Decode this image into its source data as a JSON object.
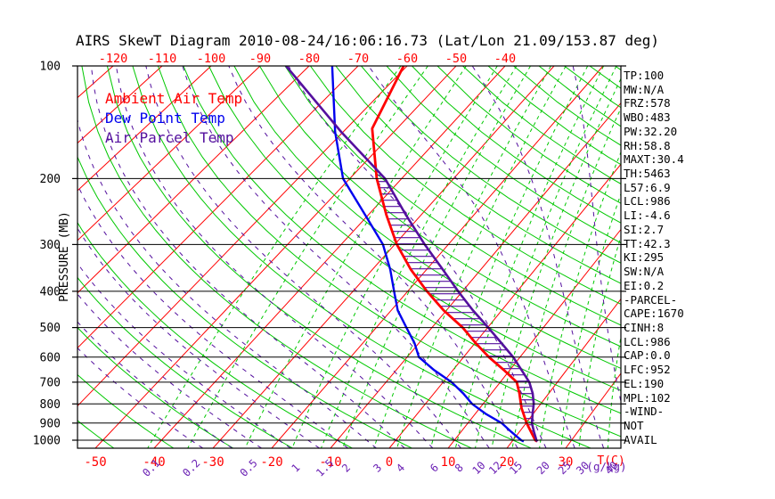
{
  "title": "AIRS SkewT Diagram 2010-08-24/16:06:16.73 (Lat/Lon 21.09/153.87 deg)",
  "legend": {
    "ambient": "Ambient Air Temp",
    "dew": "Dew Point Temp",
    "parcel": "Air Parcel Temp"
  },
  "colors": {
    "ambient": "#ff0000",
    "dew": "#0000ee",
    "parcel": "#54109e",
    "isotherm": "#ff0000",
    "dry_adiabat": "#00c800",
    "mixing_ratio": "#00c800",
    "moist_adiabat": "#54109e",
    "mixing_label": "#6b21b4",
    "axis": "#000000",
    "temp_tick_label": "#ff0000"
  },
  "axes": {
    "pressure_axis_label": "PRESSURE (MB)",
    "pressure_ticks": [
      100,
      200,
      300,
      400,
      500,
      600,
      700,
      800,
      900,
      1000
    ],
    "top_temp_ticks": [
      -120,
      -110,
      -100,
      -90,
      -80,
      -70,
      -60,
      -50,
      -40
    ],
    "bottom_temp_ticks": [
      -50,
      -40,
      -30,
      -20,
      -10,
      0,
      10,
      20,
      30
    ],
    "temp_unit_label": "T(C)",
    "mixing_unit_label": "(g/kg)"
  },
  "stats": [
    "TP:100",
    "MW:N/A",
    "FRZ:578",
    "WBO:483",
    "PW:32.20",
    "RH:58.8",
    "MAXT:30.4",
    "TH:5463",
    "L57:6.9",
    "LCL:986",
    "LI:-4.6",
    "SI:2.7",
    "TT:42.3",
    "KI:295",
    "SW:N/A",
    "EI:0.2",
    "-PARCEL-",
    "CAPE:1670",
    "CINH:8",
    "LCL:986",
    "CAP:0.0",
    "LFC:952",
    "EL:190",
    "MPL:102",
    "-WIND-",
    "NOT",
    "AVAIL"
  ],
  "chart_data": {
    "type": "skewt_log_p",
    "pressure_range_mb": [
      100,
      1050
    ],
    "isotherms_c": {
      "min": -120,
      "max": 40,
      "step": 10
    },
    "dry_adiabats_theta_c": {
      "min": -60,
      "max": 230,
      "step": 10
    },
    "moist_adiabats_thetaw_c": {
      "min": -35,
      "max": 40,
      "step": 5
    },
    "mixing_ratio_lines_gkg": [
      0.1,
      0.2,
      0.5,
      1,
      1.5,
      2,
      3,
      4,
      6,
      8,
      10,
      12,
      15,
      20,
      25,
      30,
      40
    ],
    "series": [
      {
        "name": "Ambient Air Temp",
        "color_key": "ambient",
        "points_p_t": [
          [
            100,
            -60.7
          ],
          [
            147,
            -54.9
          ],
          [
            200,
            -44.8
          ],
          [
            250,
            -36.6
          ],
          [
            300,
            -29.6
          ],
          [
            350,
            -22.9
          ],
          [
            400,
            -16.5
          ],
          [
            450,
            -10.5
          ],
          [
            500,
            -4.5
          ],
          [
            550,
            0.1
          ],
          [
            600,
            4.5
          ],
          [
            650,
            9.0
          ],
          [
            700,
            12.9
          ],
          [
            750,
            14.9
          ],
          [
            820,
            17.2
          ],
          [
            900,
            20.1
          ],
          [
            950,
            22.0
          ],
          [
            1000,
            23.8
          ],
          [
            1008,
            24.3
          ]
        ]
      },
      {
        "name": "Dew Point Temp",
        "color_key": "dew",
        "points_p_t": [
          [
            100,
            -75.3
          ],
          [
            150,
            -61.6
          ],
          [
            200,
            -51.3
          ],
          [
            250,
            -40.6
          ],
          [
            300,
            -32.2
          ],
          [
            350,
            -26.7
          ],
          [
            400,
            -22.5
          ],
          [
            450,
            -18.8
          ],
          [
            500,
            -14.6
          ],
          [
            550,
            -10.8
          ],
          [
            600,
            -7.9
          ],
          [
            650,
            -3.3
          ],
          [
            700,
            1.5
          ],
          [
            750,
            5.1
          ],
          [
            800,
            8.1
          ],
          [
            850,
            11.8
          ],
          [
            900,
            15.8
          ],
          [
            950,
            18.6
          ],
          [
            1000,
            21.4
          ],
          [
            1008,
            22.0
          ]
        ]
      },
      {
        "name": "Air Parcel Temp",
        "color_key": "parcel",
        "points_p_t": [
          [
            100,
            -84.7
          ],
          [
            150,
            -60.4
          ],
          [
            200,
            -43.2
          ],
          [
            250,
            -32.9
          ],
          [
            300,
            -24.4
          ],
          [
            350,
            -17.0
          ],
          [
            400,
            -10.8
          ],
          [
            450,
            -5.2
          ],
          [
            500,
            0.1
          ],
          [
            550,
            4.7
          ],
          [
            600,
            8.8
          ],
          [
            650,
            12.1
          ],
          [
            700,
            15.1
          ],
          [
            750,
            17.2
          ],
          [
            800,
            18.8
          ],
          [
            850,
            19.9
          ],
          [
            900,
            21.0
          ],
          [
            950,
            22.5
          ],
          [
            1000,
            24.0
          ],
          [
            1008,
            24.3
          ]
        ]
      }
    ],
    "cape_hatch": {
      "between": [
        "Air Parcel Temp",
        "Ambient Air Temp"
      ],
      "pressure_top_mb": 196,
      "pressure_bottom_mb": 955
    }
  }
}
